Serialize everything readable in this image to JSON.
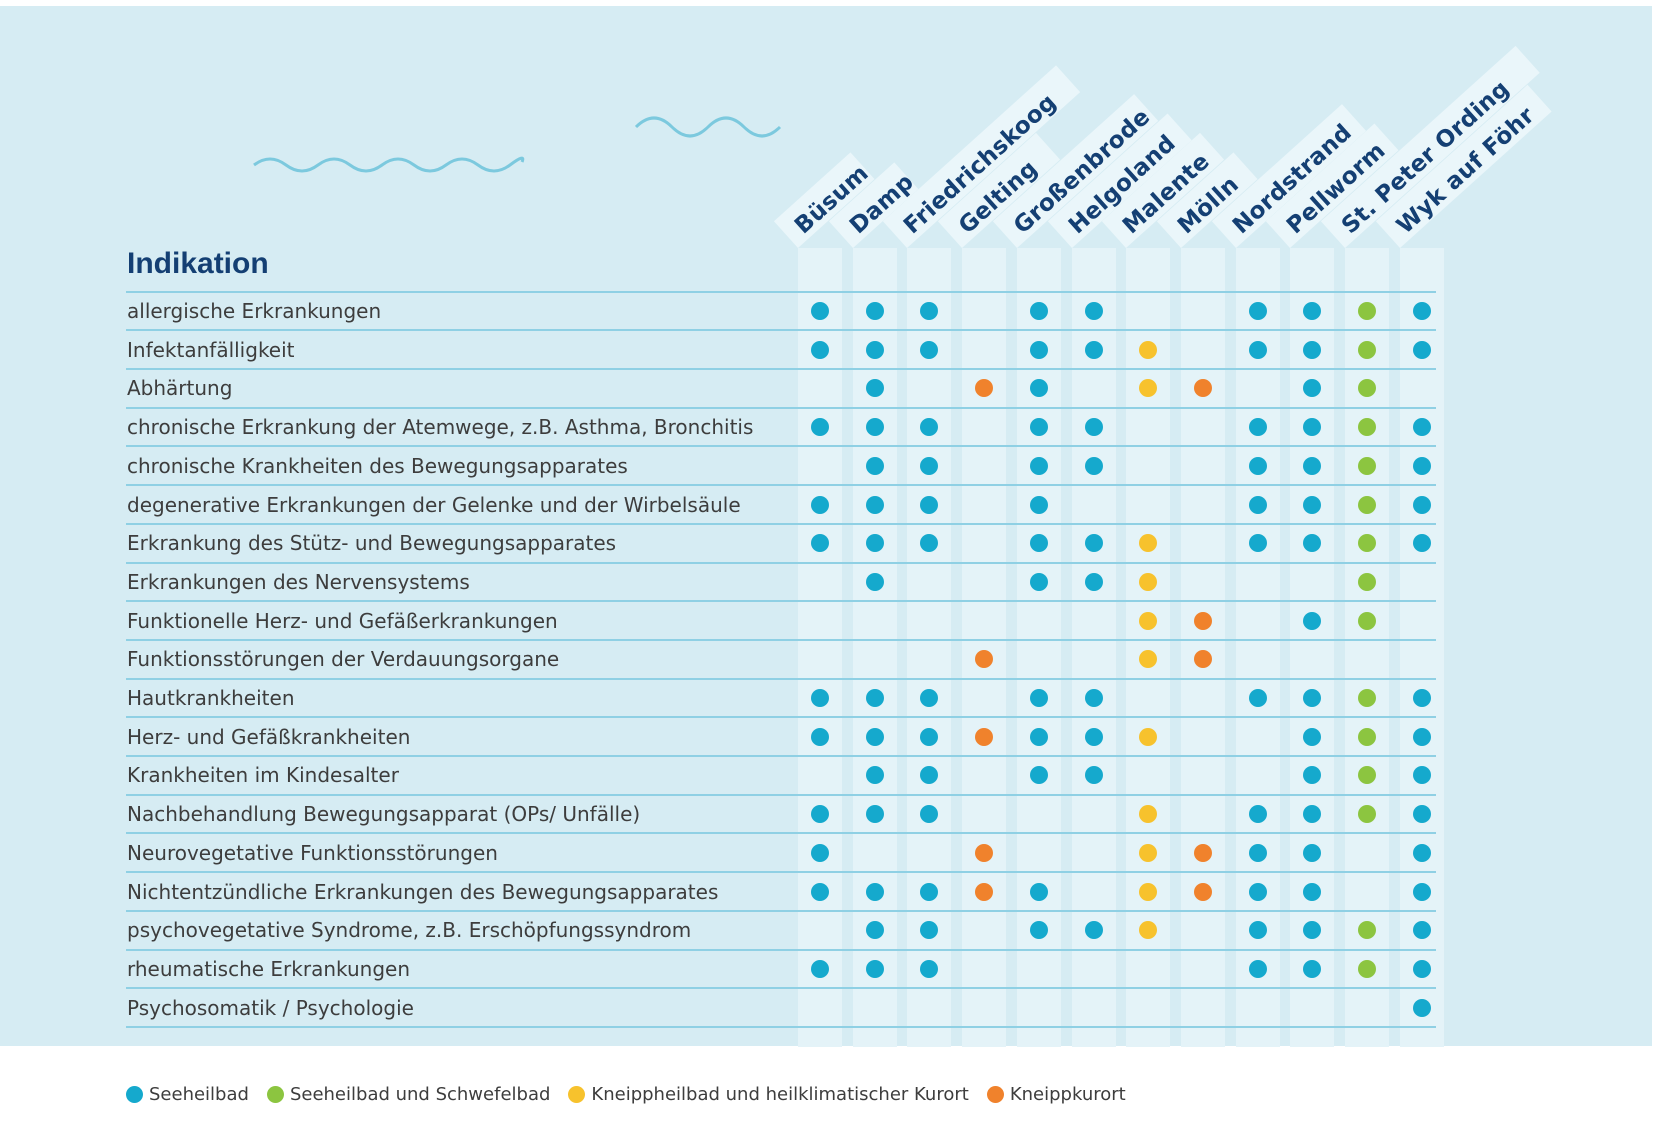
{
  "title": "Indikation",
  "colors": {
    "seeheilbad": "#15a9cd",
    "seeheilbad_schwefelbad": "#8cc540",
    "kneippheilbad": "#f7c22d",
    "kneippkurort": "#f0822c"
  },
  "locations": [
    "Büsum",
    "Damp",
    "Friedrichskoog",
    "Gelting",
    "Großenbrode",
    "Helgoland",
    "Malente",
    "Mölln",
    "Nordstrand",
    "Pellworm",
    "St. Peter Ording",
    "Wyk auf Föhr"
  ],
  "rows": [
    {
      "label": "allergische Erkrankungen",
      "cells": [
        "S",
        "S",
        "S",
        "",
        "S",
        "S",
        "",
        "",
        "S",
        "S",
        "G",
        "S"
      ]
    },
    {
      "label": "Infektanfälligkeit",
      "cells": [
        "S",
        "S",
        "S",
        "",
        "S",
        "S",
        "Y",
        "",
        "S",
        "S",
        "G",
        "S"
      ]
    },
    {
      "label": "Abhärtung",
      "cells": [
        "",
        "S",
        "",
        "O",
        "S",
        "",
        "Y",
        "O",
        "",
        "S",
        "G",
        ""
      ]
    },
    {
      "label": "chronische Erkrankung der Atemwege, z.B. Asthma, Bronchitis",
      "cells": [
        "S",
        "S",
        "S",
        "",
        "S",
        "S",
        "",
        "",
        "S",
        "S",
        "G",
        "S"
      ]
    },
    {
      "label": "chronische Krankheiten des Bewegungsapparates",
      "cells": [
        "",
        "S",
        "S",
        "",
        "S",
        "S",
        "",
        "",
        "S",
        "S",
        "G",
        "S"
      ]
    },
    {
      "label": "degenerative Erkrankungen der Gelenke und der Wirbelsäule",
      "cells": [
        "S",
        "S",
        "S",
        "",
        "S",
        "",
        "",
        "",
        "S",
        "S",
        "G",
        "S"
      ]
    },
    {
      "label": "Erkrankung des Stütz- und Bewegungsapparates",
      "cells": [
        "S",
        "S",
        "S",
        "",
        "S",
        "S",
        "Y",
        "",
        "S",
        "S",
        "G",
        "S"
      ]
    },
    {
      "label": "Erkrankungen des Nervensystems",
      "cells": [
        "",
        "S",
        "",
        "",
        "S",
        "S",
        "Y",
        "",
        "",
        "",
        "G",
        ""
      ]
    },
    {
      "label": "Funktionelle Herz- und Gefäßerkrankungen",
      "cells": [
        "",
        "",
        "",
        "",
        "",
        "",
        "Y",
        "O",
        "",
        "S",
        "G",
        ""
      ]
    },
    {
      "label": "Funktionsstörungen der Verdauungsorgane",
      "cells": [
        "",
        "",
        "",
        "O",
        "",
        "",
        "Y",
        "O",
        "",
        "",
        "",
        ""
      ]
    },
    {
      "label": "Hautkrankheiten",
      "cells": [
        "S",
        "S",
        "S",
        "",
        "S",
        "S",
        "",
        "",
        "S",
        "S",
        "G",
        "S"
      ]
    },
    {
      "label": "Herz- und Gefäßkrankheiten",
      "cells": [
        "S",
        "S",
        "S",
        "O",
        "S",
        "S",
        "Y",
        "",
        "",
        "S",
        "G",
        "S"
      ]
    },
    {
      "label": "Krankheiten im Kindesalter",
      "cells": [
        "",
        "S",
        "S",
        "",
        "S",
        "S",
        "",
        "",
        "",
        "S",
        "G",
        "S"
      ]
    },
    {
      "label": "Nachbehandlung Bewegungsapparat (OPs/ Unfälle)",
      "cells": [
        "S",
        "S",
        "S",
        "",
        "",
        "",
        "Y",
        "",
        "S",
        "S",
        "G",
        "S"
      ]
    },
    {
      "label": "Neurovegetative Funktionsstörungen",
      "cells": [
        "S",
        "",
        "",
        "O",
        "",
        "",
        "Y",
        "O",
        "S",
        "S",
        "",
        "S"
      ]
    },
    {
      "label": "Nichtentzündliche Erkrankungen des Bewegungsapparates",
      "cells": [
        "S",
        "S",
        "S",
        "O",
        "S",
        "",
        "Y",
        "O",
        "S",
        "S",
        "",
        "S"
      ]
    },
    {
      "label": "psychovegetative Syndrome, z.B. Erschöpfungssyndrom",
      "cells": [
        "",
        "S",
        "S",
        "",
        "S",
        "S",
        "Y",
        "",
        "S",
        "S",
        "G",
        "S"
      ]
    },
    {
      "label": "rheumatische Erkrankungen",
      "cells": [
        "S",
        "S",
        "S",
        "",
        "",
        "",
        "",
        "",
        "S",
        "S",
        "G",
        "S"
      ]
    },
    {
      "label": "Psychosomatik / Psychologie",
      "cells": [
        "",
        "",
        "",
        "",
        "",
        "",
        "",
        "",
        "",
        "",
        "",
        "S"
      ]
    }
  ],
  "legend": [
    {
      "key": "S",
      "label": "Seeheilbad",
      "color": "#15a9cd"
    },
    {
      "key": "G",
      "label": "Seeheilbad und Schwefelbad",
      "color": "#8cc540"
    },
    {
      "key": "Y",
      "label": "Kneippheilbad und heilklimatischer Kurort",
      "color": "#f7c22d"
    },
    {
      "key": "O",
      "label": "Kneippkurort",
      "color": "#f0822c"
    }
  ]
}
